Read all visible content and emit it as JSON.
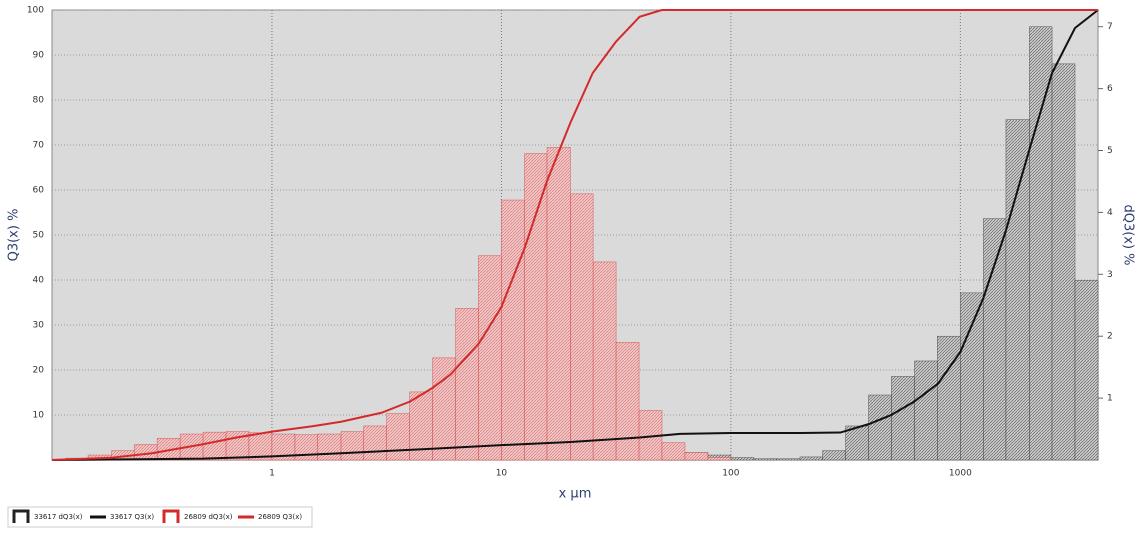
{
  "chart_data": {
    "type": "histogram",
    "x_label": "x µm",
    "y_label": "Q3(x) %",
    "y2_label": "dQ3(x) %",
    "xscale": "log",
    "xlim": [
      0.11,
      3980
    ],
    "xticks": [
      1,
      10,
      100,
      1000
    ],
    "ylim": [
      0,
      100
    ],
    "yticks": [
      10,
      20,
      30,
      40,
      50,
      60,
      70,
      80,
      90,
      100
    ],
    "y2lim": [
      0,
      7.27
    ],
    "y2ticks": [
      1,
      2,
      3,
      4,
      5,
      6,
      7
    ],
    "grid": true,
    "legend": "bottom-left",
    "series": [
      {
        "name": "33617 dQ3(x)",
        "type": "histogram",
        "axis": "y2",
        "color": "#222222",
        "bins": [
          50.1,
          63.1,
          79.4,
          100,
          126,
          158,
          200,
          251,
          316,
          398,
          501,
          631,
          794,
          1000,
          1260,
          1580,
          2000,
          2510,
          3160,
          3980
        ],
        "values": [
          0.1,
          0.12,
          0.08,
          0.04,
          0.02,
          0.02,
          0.05,
          0.15,
          0.55,
          1.05,
          1.35,
          1.6,
          2.0,
          2.7,
          3.9,
          5.5,
          7.0,
          6.4,
          2.9
        ]
      },
      {
        "name": "33617 Q3(x)",
        "type": "line",
        "color": "#111111",
        "x": [
          0.11,
          0.5,
          1,
          2,
          5,
          10,
          20,
          40,
          60,
          100,
          200,
          300,
          400,
          500,
          630,
          800,
          1000,
          1260,
          1580,
          2000,
          2510,
          3160,
          3980
        ],
        "values": [
          0,
          0.3,
          0.8,
          1.5,
          2.5,
          3.3,
          4,
          5,
          5.8,
          6,
          6,
          6.1,
          8,
          10,
          13,
          17,
          24,
          36,
          51,
          69,
          86,
          96,
          100
        ]
      },
      {
        "name": "26809 dQ3(x)",
        "type": "histogram",
        "axis": "y2",
        "color": "#d42a2a",
        "bins": [
          0.126,
          0.158,
          0.2,
          0.251,
          0.316,
          0.398,
          0.501,
          0.631,
          0.794,
          1,
          1.26,
          1.58,
          2,
          2.51,
          3.16,
          3.98,
          5.01,
          6.31,
          7.94,
          10,
          12.6,
          15.8,
          20,
          25.1,
          31.6,
          39.8,
          50.1,
          63.1,
          79.4,
          100
        ],
        "values": [
          0.03,
          0.08,
          0.15,
          0.25,
          0.35,
          0.42,
          0.45,
          0.46,
          0.44,
          0.42,
          0.41,
          0.42,
          0.46,
          0.55,
          0.75,
          1.1,
          1.65,
          2.45,
          3.3,
          4.2,
          4.95,
          5.05,
          4.3,
          3.2,
          1.9,
          0.8,
          0.28,
          0.12,
          0.04
        ]
      },
      {
        "name": "26809 Q3(x)",
        "type": "line",
        "color": "#d42a2a",
        "x": [
          0.11,
          0.2,
          0.3,
          0.5,
          0.7,
          1,
          1.5,
          2,
          3,
          4,
          5,
          6,
          8,
          10,
          12.6,
          15.8,
          20,
          25,
          31.6,
          40,
          50,
          3980
        ],
        "values": [
          0,
          0.5,
          1.5,
          3.5,
          5,
          6.3,
          7.5,
          8.5,
          10.5,
          13,
          16,
          19,
          26,
          34,
          47,
          62,
          75,
          86,
          93,
          98.5,
          100,
          100
        ]
      }
    ]
  }
}
